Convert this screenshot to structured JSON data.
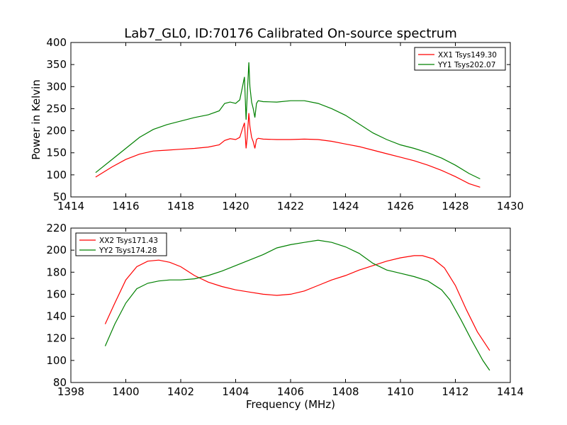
{
  "chart_data": [
    {
      "type": "line",
      "title": "Lab7_GL0, ID:70176 Calibrated On-source spectrum",
      "xlabel": "",
      "ylabel": "Power in Kelvin",
      "xlim": [
        1414,
        1430
      ],
      "ylim": [
        50,
        400
      ],
      "xticks": [
        1414,
        1416,
        1418,
        1420,
        1422,
        1424,
        1426,
        1428,
        1430
      ],
      "yticks": [
        50,
        100,
        150,
        200,
        250,
        300,
        350,
        400
      ],
      "grid": false,
      "legend": "top-right",
      "series": [
        {
          "name": "XX1 Tsys149.30",
          "color": "#ff0000",
          "x": [
            1414.9,
            1415.5,
            1416.0,
            1416.5,
            1417.0,
            1417.5,
            1418.0,
            1418.5,
            1419.0,
            1419.4,
            1419.6,
            1419.8,
            1420.0,
            1420.15,
            1420.25,
            1420.32,
            1420.38,
            1420.42,
            1420.48,
            1420.52,
            1420.58,
            1420.64,
            1420.7,
            1420.76,
            1420.82,
            1421.0,
            1421.5,
            1422.0,
            1422.5,
            1423.0,
            1423.5,
            1424.0,
            1424.5,
            1425.0,
            1425.5,
            1426.0,
            1426.5,
            1427.0,
            1427.5,
            1428.0,
            1428.5,
            1428.9
          ],
          "y": [
            95,
            118,
            135,
            147,
            154,
            156,
            158,
            160,
            163,
            168,
            178,
            182,
            180,
            185,
            205,
            218,
            160,
            185,
            240,
            210,
            185,
            175,
            160,
            180,
            183,
            181,
            180,
            180,
            181,
            180,
            176,
            170,
            164,
            156,
            148,
            140,
            132,
            122,
            110,
            96,
            80,
            72
          ]
        },
        {
          "name": "YY1 Tsys202.07",
          "color": "#008000",
          "x": [
            1414.9,
            1415.5,
            1416.0,
            1416.5,
            1417.0,
            1417.5,
            1418.0,
            1418.5,
            1419.0,
            1419.4,
            1419.6,
            1419.8,
            1420.0,
            1420.15,
            1420.25,
            1420.32,
            1420.38,
            1420.42,
            1420.48,
            1420.52,
            1420.58,
            1420.64,
            1420.7,
            1420.76,
            1420.82,
            1421.0,
            1421.5,
            1422.0,
            1422.5,
            1423.0,
            1423.5,
            1424.0,
            1424.5,
            1425.0,
            1425.5,
            1426.0,
            1426.5,
            1427.0,
            1427.5,
            1428.0,
            1428.5,
            1428.9
          ],
          "y": [
            105,
            135,
            160,
            185,
            203,
            214,
            222,
            230,
            236,
            245,
            262,
            265,
            262,
            270,
            300,
            322,
            225,
            280,
            355,
            300,
            265,
            250,
            230,
            262,
            268,
            266,
            265,
            268,
            268,
            262,
            250,
            235,
            215,
            195,
            180,
            168,
            160,
            150,
            138,
            122,
            103,
            91
          ]
        }
      ]
    },
    {
      "type": "line",
      "title": "",
      "xlabel": "Frequency (MHz)",
      "ylabel": "",
      "xlim": [
        1398,
        1414
      ],
      "ylim": [
        80,
        220
      ],
      "xticks": [
        1398,
        1400,
        1402,
        1404,
        1406,
        1408,
        1410,
        1412,
        1414
      ],
      "yticks": [
        80,
        100,
        120,
        140,
        160,
        180,
        200,
        220
      ],
      "grid": false,
      "legend": "top-left",
      "series": [
        {
          "name": "XX2 Tsys171.43",
          "color": "#ff0000",
          "x": [
            1399.25,
            1399.6,
            1400.0,
            1400.4,
            1400.8,
            1401.2,
            1401.6,
            1402.0,
            1402.5,
            1403.0,
            1403.5,
            1404.0,
            1404.5,
            1405.0,
            1405.5,
            1406.0,
            1406.5,
            1407.0,
            1407.5,
            1408.0,
            1408.5,
            1409.0,
            1409.5,
            1410.0,
            1410.5,
            1410.8,
            1411.2,
            1411.6,
            1412.0,
            1412.4,
            1412.8,
            1413.25
          ],
          "y": [
            133,
            152,
            173,
            185,
            190,
            191,
            189,
            185,
            177,
            171,
            167,
            164,
            162,
            160,
            159,
            160,
            163,
            168,
            173,
            177,
            182,
            186,
            190,
            193,
            195,
            195,
            192,
            184,
            168,
            146,
            126,
            109
          ]
        },
        {
          "name": "YY2 Tsys174.28",
          "color": "#008000",
          "x": [
            1399.25,
            1399.6,
            1400.0,
            1400.4,
            1400.8,
            1401.2,
            1401.6,
            1402.0,
            1402.5,
            1403.0,
            1403.5,
            1404.0,
            1404.5,
            1405.0,
            1405.5,
            1406.0,
            1406.5,
            1407.0,
            1407.5,
            1408.0,
            1408.5,
            1409.0,
            1409.5,
            1410.0,
            1410.5,
            1411.0,
            1411.5,
            1411.8,
            1412.2,
            1412.6,
            1413.0,
            1413.25
          ],
          "y": [
            113,
            133,
            152,
            165,
            170,
            172,
            173,
            173,
            174,
            177,
            181,
            186,
            191,
            196,
            202,
            205,
            207,
            209,
            207,
            203,
            197,
            188,
            182,
            179,
            176,
            172,
            164,
            155,
            137,
            118,
            100,
            91
          ]
        }
      ]
    }
  ]
}
